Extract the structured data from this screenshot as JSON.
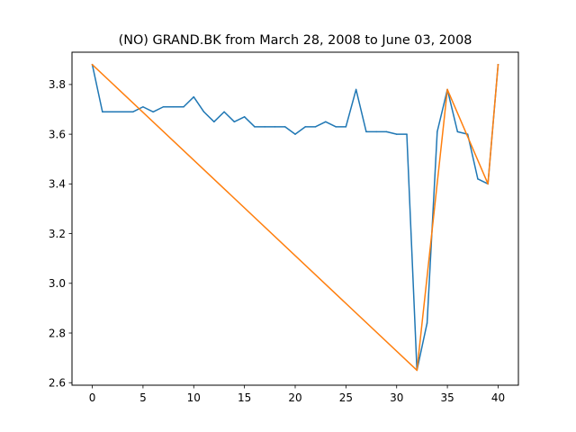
{
  "chart_data": {
    "type": "line",
    "title": "(NO) GRAND.BK from March 28, 2008 to June 03, 2008",
    "xlabel": "",
    "ylabel": "",
    "xlim": [
      -2,
      42
    ],
    "ylim": [
      2.59,
      3.93
    ],
    "x_ticks": [
      0,
      5,
      10,
      15,
      20,
      25,
      30,
      35,
      40
    ],
    "y_ticks": [
      2.6,
      2.8,
      3.0,
      3.2,
      3.4,
      3.6,
      3.8
    ],
    "y_tick_labels": [
      "2.6",
      "2.8",
      "3.0",
      "3.2",
      "3.4",
      "3.6",
      "3.8"
    ],
    "grid": false,
    "series": [
      {
        "color": "#1f77b4",
        "x": [
          0,
          1,
          2,
          3,
          4,
          5,
          6,
          7,
          8,
          9,
          10,
          11,
          12,
          13,
          14,
          15,
          16,
          17,
          18,
          19,
          20,
          21,
          22,
          23,
          24,
          25,
          26,
          27,
          28,
          29,
          30,
          31,
          32,
          33,
          34,
          35,
          36,
          37,
          38,
          39,
          40
        ],
        "values": [
          3.88,
          3.69,
          3.69,
          3.69,
          3.69,
          3.71,
          3.69,
          3.71,
          3.71,
          3.71,
          3.75,
          3.69,
          3.65,
          3.69,
          3.65,
          3.67,
          3.63,
          3.63,
          3.63,
          3.63,
          3.6,
          3.63,
          3.63,
          3.65,
          3.63,
          3.63,
          3.78,
          3.61,
          3.61,
          3.61,
          3.6,
          3.6,
          2.65,
          2.84,
          3.61,
          3.78,
          3.61,
          3.6,
          3.42,
          3.4,
          3.88
        ]
      },
      {
        "color": "#ff7f0e",
        "x": [
          0,
          32,
          35,
          39,
          40
        ],
        "values": [
          3.88,
          2.65,
          3.78,
          3.4,
          3.88
        ]
      }
    ]
  }
}
